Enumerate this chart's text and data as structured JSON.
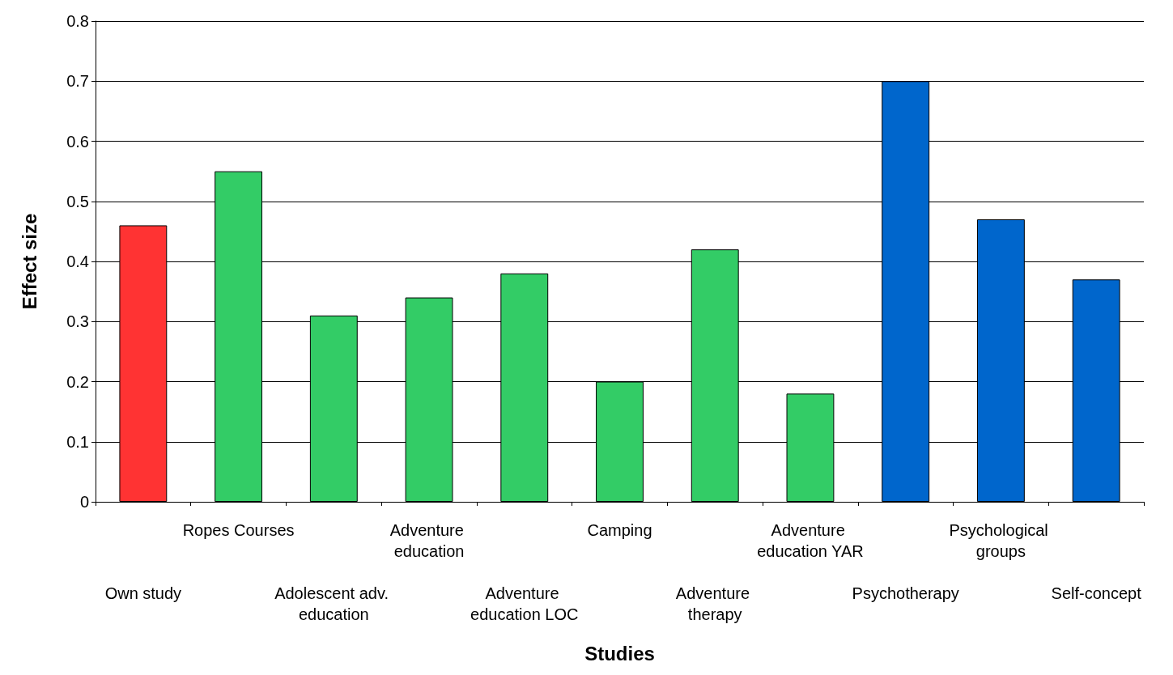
{
  "chart_data": {
    "type": "bar",
    "xlabel": "Studies",
    "ylabel": "Effect size",
    "categories": [
      "Own study",
      "Ropes Courses",
      "Adolescent adv. education",
      "Adventure education",
      "Adventure education LOC",
      "Camping",
      "Adventure therapy",
      "Adventure education YAR",
      "Psychotherapy",
      "Psychological groups",
      "Self-concept"
    ],
    "values": [
      0.46,
      0.55,
      0.31,
      0.34,
      0.38,
      0.2,
      0.42,
      0.18,
      0.7,
      0.47,
      0.37
    ],
    "colors": [
      "#ff3333",
      "#33cc66",
      "#33cc66",
      "#33cc66",
      "#33cc66",
      "#33cc66",
      "#33cc66",
      "#33cc66",
      "#0066cc",
      "#0066cc",
      "#0066cc"
    ],
    "ylim": [
      0,
      0.8
    ],
    "yticks": [
      0,
      0.1,
      0.2,
      0.3,
      0.4,
      0.5,
      0.6,
      0.7,
      0.8
    ],
    "grid": "y"
  }
}
